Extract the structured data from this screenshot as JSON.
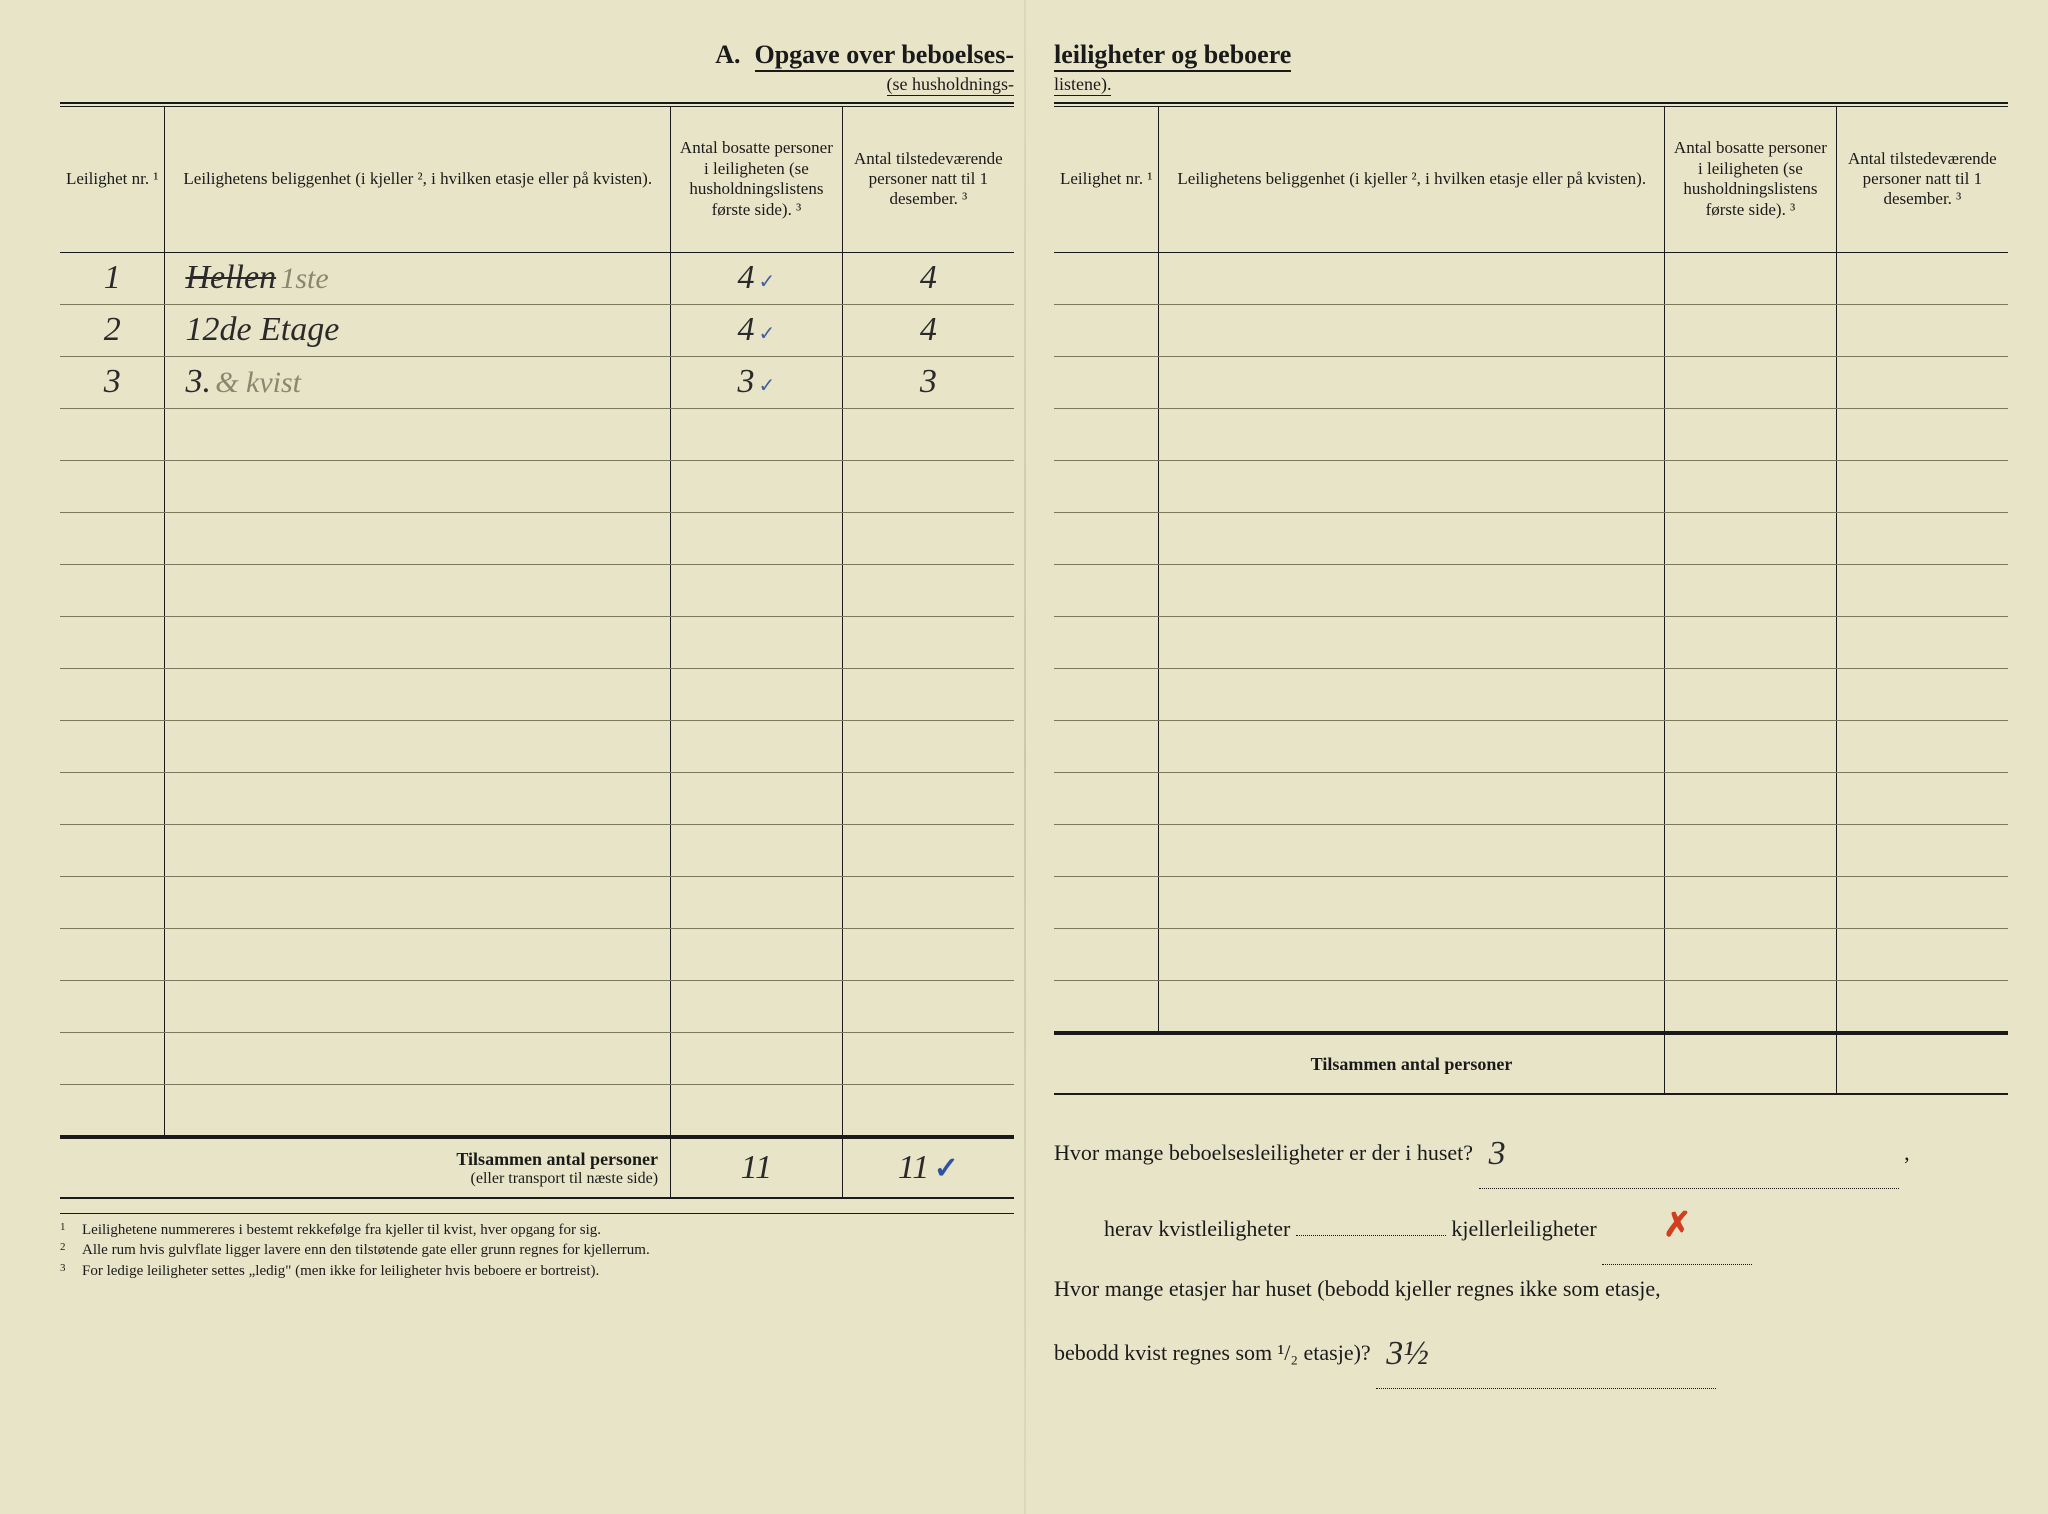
{
  "colors": {
    "paper": "#e8e4c8",
    "ink": "#1a1a1a",
    "rule_light": "#7a7a5a",
    "handwriting": "#2a2a2a",
    "pencil": "#888870",
    "red": "#d04020",
    "blue": "#3050a0"
  },
  "typography": {
    "printed_family": "Georgia, Times New Roman, serif",
    "handwritten_family": "Brush Script MT, cursive",
    "title_size_pt": 20,
    "header_size_pt": 13,
    "body_size_pt": 13,
    "handwriting_size_pt": 26
  },
  "left": {
    "title_prefix": "A.",
    "title_main": "Opgave over beboelses-",
    "subtitle": "(se husholdnings-",
    "headers": {
      "col1": "Leilighet nr. ¹",
      "col2": "Leilighetens beliggenhet (i kjeller ², i hvilken etasje eller på kvisten).",
      "col3": "Antal bosatte personer i leiligheten (se husholdningslistens første side). ³",
      "col4": "Antal tilstedeværende personer natt til 1 desember. ³"
    },
    "rows": [
      {
        "nr": "1",
        "loc_strike": "Hellen",
        "loc_pencil": "1ste",
        "p1": "4",
        "tick": "✓",
        "p2": "4"
      },
      {
        "nr": "2",
        "loc": "12de Etage",
        "p1": "4",
        "tick": "✓",
        "p2": "4"
      },
      {
        "nr": "3",
        "loc": "3.",
        "loc_pencil": "& kvist",
        "p1": "3",
        "tick": "✓",
        "p2": "3"
      }
    ],
    "empty_rows": 14,
    "totals": {
      "label": "Tilsammen antal personer",
      "sublabel": "(eller transport til næste side)",
      "p1": "11",
      "p2": "11",
      "check": "✓"
    },
    "footnotes": [
      {
        "n": "1",
        "text": "Leilighetene nummereres i bestemt rekkefølge fra kjeller til kvist, hver opgang for sig."
      },
      {
        "n": "2",
        "text": "Alle rum hvis gulvflate ligger lavere enn den tilstøtende gate eller grunn regnes for kjellerrum."
      },
      {
        "n": "3",
        "text": "For ledige leiligheter settes „ledig\" (men ikke for leiligheter hvis beboere er bortreist)."
      }
    ]
  },
  "right": {
    "title_main": "leiligheter og beboere",
    "subtitle": "listene).",
    "headers": {
      "col1": "Leilighet nr. ¹",
      "col2": "Leilighetens beliggenhet (i kjeller ², i hvilken etasje eller på kvisten).",
      "col3": "Antal bosatte personer i leiligheten (se husholdningslistens første side). ³",
      "col4": "Antal tilstedeværende personer natt til 1 desember. ³"
    },
    "empty_rows": 15,
    "totals": {
      "label": "Tilsammen antal personer"
    },
    "questions": {
      "q1_a": "Hvor mange beboelsesleiligheter er der i huset?",
      "q1_ans": "3",
      "q2_a": "herav kvistleiligheter",
      "q2_b": "kjellerleiligheter",
      "q2_ans_b": "✗",
      "q3_a": "Hvor mange etasjer har huset (bebodd kjeller regnes ikke som etasje,",
      "q3_b": "bebodd kvist regnes som ¹/₂ etasje)?",
      "q3_ans": "3½"
    }
  }
}
